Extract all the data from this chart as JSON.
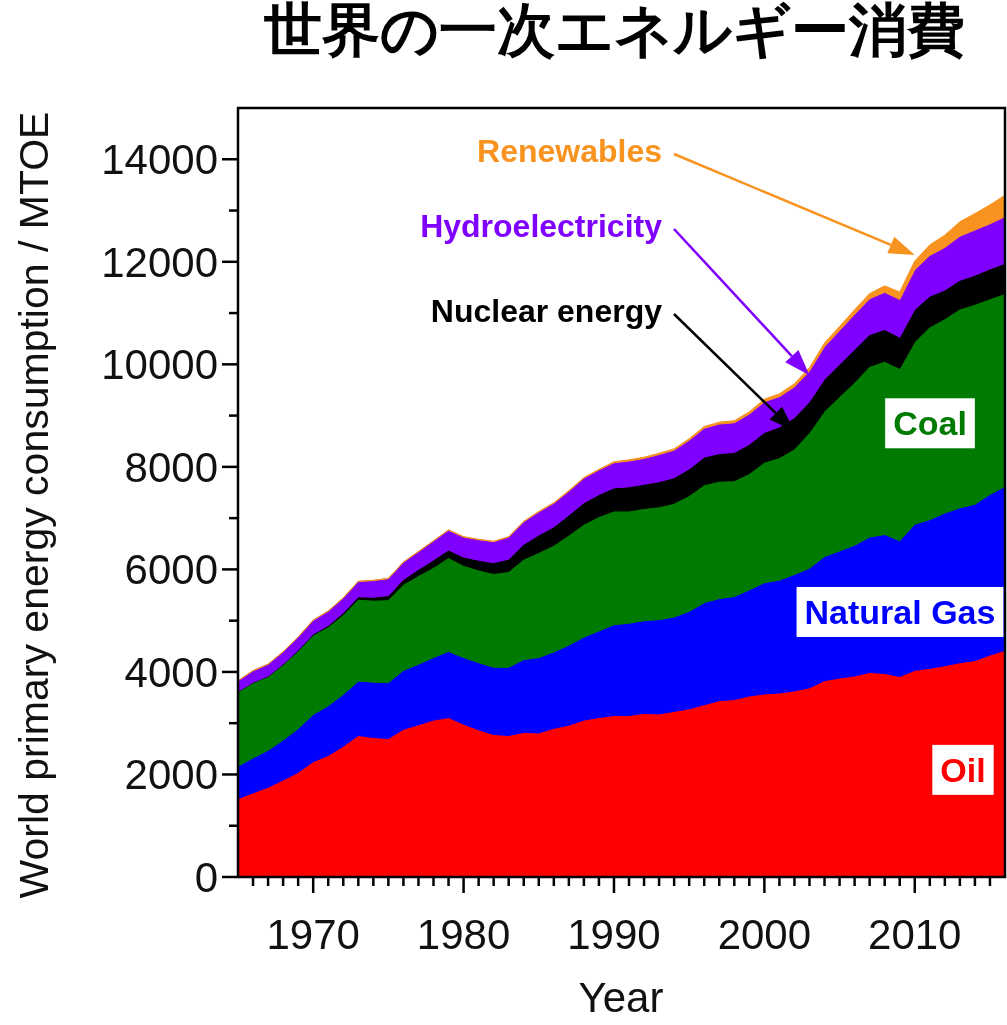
{
  "chart_data": {
    "type": "area",
    "stacked": true,
    "title": "世界の一次エネルギー消費",
    "xlabel": "Year",
    "ylabel": "World primary energy consumption / MTOE",
    "x": [
      1965,
      1966,
      1967,
      1968,
      1969,
      1970,
      1971,
      1972,
      1973,
      1974,
      1975,
      1976,
      1977,
      1978,
      1979,
      1980,
      1981,
      1982,
      1983,
      1984,
      1985,
      1986,
      1987,
      1988,
      1989,
      1990,
      1991,
      1992,
      1993,
      1994,
      1995,
      1996,
      1997,
      1998,
      1999,
      2000,
      2001,
      2002,
      2003,
      2004,
      2005,
      2006,
      2007,
      2008,
      2009,
      2010,
      2011,
      2012,
      2013,
      2014,
      2015,
      2016
    ],
    "series": [
      {
        "name": "Oil",
        "color": "#ff0000",
        "values": [
          1530,
          1640,
          1750,
          1890,
          2040,
          2250,
          2370,
          2550,
          2760,
          2720,
          2700,
          2880,
          2970,
          3060,
          3110,
          2980,
          2870,
          2780,
          2760,
          2820,
          2810,
          2900,
          2960,
          3060,
          3110,
          3150,
          3150,
          3190,
          3180,
          3230,
          3280,
          3360,
          3440,
          3460,
          3530,
          3570,
          3590,
          3630,
          3690,
          3830,
          3880,
          3920,
          3990,
          3970,
          3910,
          4030,
          4070,
          4120,
          4180,
          4220,
          4330,
          4420
        ]
      },
      {
        "name": "Natural Gas",
        "color": "#0000ff",
        "values": [
          630,
          680,
          720,
          780,
          850,
          920,
          970,
          1010,
          1060,
          1080,
          1090,
          1150,
          1180,
          1220,
          1290,
          1300,
          1310,
          1310,
          1330,
          1420,
          1470,
          1490,
          1560,
          1620,
          1690,
          1770,
          1800,
          1810,
          1840,
          1840,
          1900,
          1990,
          1990,
          2010,
          2070,
          2170,
          2200,
          2270,
          2330,
          2420,
          2480,
          2550,
          2640,
          2710,
          2650,
          2850,
          2900,
          2980,
          3020,
          3050,
          3130,
          3200
        ]
      },
      {
        "name": "Coal",
        "color": "#007a00",
        "values": [
          1450,
          1470,
          1440,
          1470,
          1520,
          1550,
          1540,
          1560,
          1600,
          1600,
          1620,
          1680,
          1730,
          1760,
          1830,
          1800,
          1810,
          1830,
          1870,
          1960,
          2050,
          2080,
          2150,
          2200,
          2230,
          2220,
          2190,
          2190,
          2200,
          2220,
          2260,
          2300,
          2290,
          2260,
          2270,
          2350,
          2390,
          2450,
          2650,
          2840,
          3010,
          3180,
          3330,
          3380,
          3360,
          3560,
          3760,
          3790,
          3880,
          3900,
          3820,
          3760
        ]
      },
      {
        "name": "Nuclear energy",
        "color": "#000000",
        "values": [
          6,
          8,
          9,
          12,
          14,
          18,
          25,
          33,
          45,
          58,
          80,
          95,
          120,
          145,
          150,
          160,
          190,
          210,
          240,
          290,
          340,
          360,
          390,
          420,
          430,
          450,
          470,
          470,
          490,
          500,
          520,
          540,
          540,
          550,
          570,
          580,
          600,
          610,
          600,
          620,
          630,
          640,
          620,
          620,
          610,
          630,
          600,
          560,
          560,
          570,
          580,
          590
        ]
      },
      {
        "name": "Hydroelectricity",
        "color": "#8000ff",
        "values": [
          210,
          225,
          230,
          240,
          255,
          270,
          280,
          290,
          300,
          325,
          330,
          335,
          345,
          370,
          385,
          390,
          400,
          410,
          430,
          440,
          450,
          460,
          465,
          480,
          480,
          490,
          505,
          505,
          530,
          535,
          560,
          565,
          575,
          580,
          590,
          600,
          590,
          600,
          600,
          635,
          660,
          685,
          700,
          725,
          735,
          775,
          795,
          830,
          860,
          880,
          880,
          910
        ]
      },
      {
        "name": "Renewables",
        "color": "#f7931e",
        "values": [
          2,
          2,
          2,
          2,
          2,
          3,
          3,
          3,
          3,
          3,
          5,
          5,
          5,
          5,
          5,
          8,
          8,
          8,
          8,
          8,
          12,
          12,
          12,
          12,
          12,
          20,
          22,
          24,
          25,
          27,
          30,
          33,
          36,
          40,
          45,
          50,
          55,
          60,
          65,
          72,
          80,
          90,
          100,
          125,
          145,
          170,
          205,
          240,
          280,
          320,
          370,
          420
        ]
      }
    ],
    "xlim": [
      1965,
      2016
    ],
    "ylim": [
      0,
      15000
    ],
    "xticks": [
      {
        "value": 1966,
        "label": null
      },
      {
        "value": 1967,
        "label": null
      },
      {
        "value": 1968,
        "label": null
      },
      {
        "value": 1969,
        "label": null
      },
      1970,
      {
        "value": 1971,
        "label": null
      },
      {
        "value": 1972,
        "label": null
      },
      {
        "value": 1973,
        "label": null
      },
      {
        "value": 1974,
        "label": null
      },
      {
        "value": 1975,
        "label": null
      },
      {
        "value": 1976,
        "label": null
      },
      {
        "value": 1977,
        "label": null
      },
      {
        "value": 1978,
        "label": null
      },
      {
        "value": 1979,
        "label": null
      },
      1980,
      {
        "value": 1981,
        "label": null
      },
      {
        "value": 1982,
        "label": null
      },
      {
        "value": 1983,
        "label": null
      },
      {
        "value": 1984,
        "label": null
      },
      {
        "value": 1985,
        "label": null
      },
      {
        "value": 1986,
        "label": null
      },
      {
        "value": 1987,
        "label": null
      },
      {
        "value": 1988,
        "label": null
      },
      {
        "value": 1989,
        "label": null
      },
      1990,
      {
        "value": 1991,
        "label": null
      },
      {
        "value": 1992,
        "label": null
      },
      {
        "value": 1993,
        "label": null
      },
      {
        "value": 1994,
        "label": null
      },
      {
        "value": 1995,
        "label": null
      },
      {
        "value": 1996,
        "label": null
      },
      {
        "value": 1997,
        "label": null
      },
      {
        "value": 1998,
        "label": null
      },
      {
        "value": 1999,
        "label": null
      },
      2000,
      {
        "value": 2001,
        "label": null
      },
      {
        "value": 2002,
        "label": null
      },
      {
        "value": 2003,
        "label": null
      },
      {
        "value": 2004,
        "label": null
      },
      {
        "value": 2005,
        "label": null
      },
      {
        "value": 2006,
        "label": null
      },
      {
        "value": 2007,
        "label": null
      },
      {
        "value": 2008,
        "label": null
      },
      {
        "value": 2009,
        "label": null
      },
      2010,
      {
        "value": 2011,
        "label": null
      },
      {
        "value": 2012,
        "label": null
      },
      {
        "value": 2013,
        "label": null
      },
      {
        "value": 2014,
        "label": null
      },
      {
        "value": 2015,
        "label": null
      }
    ],
    "yticks": [
      0,
      {
        "value": 1000,
        "label": null
      },
      2000,
      {
        "value": 3000,
        "label": null
      },
      4000,
      {
        "value": 5000,
        "label": null
      },
      6000,
      {
        "value": 7000,
        "label": null
      },
      8000,
      {
        "value": 9000,
        "label": null
      },
      10000,
      {
        "value": 11000,
        "label": null
      },
      12000,
      {
        "value": 13000,
        "label": null
      },
      14000
    ]
  }
}
